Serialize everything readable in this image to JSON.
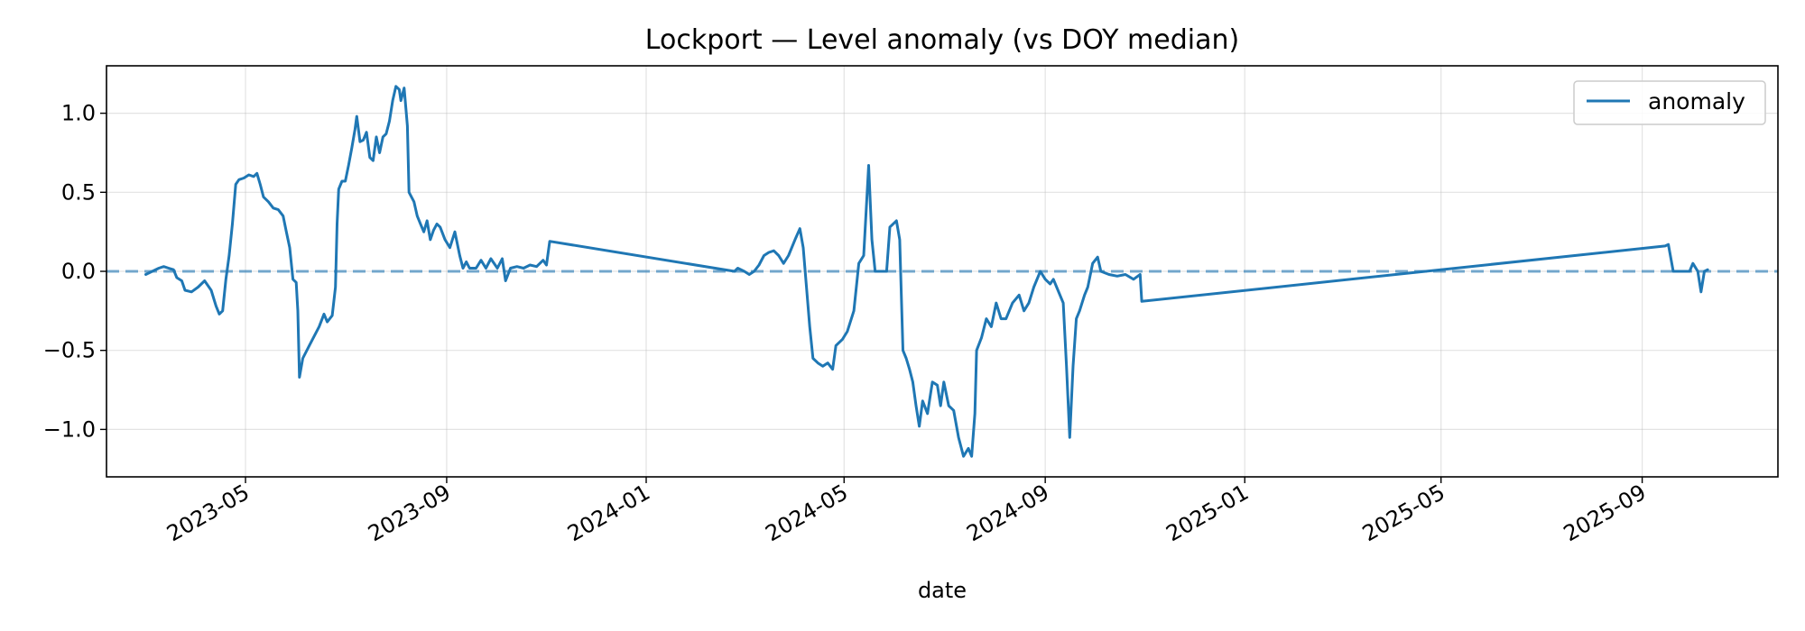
{
  "chart_data": {
    "type": "line",
    "title": "Lockport — Level anomaly (vs DOY median)",
    "xlabel": "date",
    "ylabel": "",
    "xlim": [
      "2023-02-05",
      "2025-11-23"
    ],
    "ylim": [
      -1.3,
      1.3
    ],
    "x_ticks": [
      "2023-05",
      "2023-09",
      "2024-01",
      "2024-05",
      "2024-09",
      "2025-01",
      "2025-05",
      "2025-09"
    ],
    "y_ticks": [
      -1.0,
      -0.5,
      0.0,
      0.5,
      1.0
    ],
    "y_tick_labels": [
      "−1.0",
      "−0.5",
      "0.0",
      "0.5",
      "1.0"
    ],
    "grid": true,
    "legend_position": "top-right",
    "colors": {
      "series": "#1f77b4",
      "reference_line": "#1f77b4"
    },
    "reference_line": {
      "y": 0.0,
      "style": "dashed"
    },
    "series": [
      {
        "name": "anomaly",
        "points": [
          [
            "2023-03-01",
            -0.02
          ],
          [
            "2023-03-05",
            0.0
          ],
          [
            "2023-03-09",
            0.02
          ],
          [
            "2023-03-12",
            0.03
          ],
          [
            "2023-03-15",
            0.02
          ],
          [
            "2023-03-18",
            0.01
          ],
          [
            "2023-03-20",
            -0.04
          ],
          [
            "2023-03-23",
            -0.06
          ],
          [
            "2023-03-25",
            -0.12
          ],
          [
            "2023-03-29",
            -0.13
          ],
          [
            "2023-04-02",
            -0.1
          ],
          [
            "2023-04-06",
            -0.06
          ],
          [
            "2023-04-10",
            -0.12
          ],
          [
            "2023-04-13",
            -0.22
          ],
          [
            "2023-04-15",
            -0.27
          ],
          [
            "2023-04-17",
            -0.25
          ],
          [
            "2023-04-19",
            -0.05
          ],
          [
            "2023-04-21",
            0.1
          ],
          [
            "2023-04-23",
            0.3
          ],
          [
            "2023-04-25",
            0.55
          ],
          [
            "2023-04-27",
            0.58
          ],
          [
            "2023-04-30",
            0.59
          ],
          [
            "2023-05-03",
            0.61
          ],
          [
            "2023-05-06",
            0.6
          ],
          [
            "2023-05-08",
            0.62
          ],
          [
            "2023-05-10",
            0.55
          ],
          [
            "2023-05-12",
            0.47
          ],
          [
            "2023-05-15",
            0.44
          ],
          [
            "2023-05-18",
            0.4
          ],
          [
            "2023-05-21",
            0.39
          ],
          [
            "2023-05-24",
            0.35
          ],
          [
            "2023-05-26",
            0.25
          ],
          [
            "2023-05-28",
            0.15
          ],
          [
            "2023-05-30",
            -0.05
          ],
          [
            "2023-06-01",
            -0.07
          ],
          [
            "2023-06-02",
            -0.25
          ],
          [
            "2023-06-03",
            -0.67
          ],
          [
            "2023-06-05",
            -0.55
          ],
          [
            "2023-06-10",
            -0.45
          ],
          [
            "2023-06-15",
            -0.35
          ],
          [
            "2023-06-18",
            -0.27
          ],
          [
            "2023-06-20",
            -0.32
          ],
          [
            "2023-06-23",
            -0.28
          ],
          [
            "2023-06-25",
            -0.1
          ],
          [
            "2023-06-26",
            0.3
          ],
          [
            "2023-06-27",
            0.52
          ],
          [
            "2023-06-29",
            0.57
          ],
          [
            "2023-07-01",
            0.57
          ],
          [
            "2023-07-03",
            0.67
          ],
          [
            "2023-07-05",
            0.78
          ],
          [
            "2023-07-07",
            0.9
          ],
          [
            "2023-07-08",
            0.98
          ],
          [
            "2023-07-10",
            0.82
          ],
          [
            "2023-07-12",
            0.83
          ],
          [
            "2023-07-14",
            0.88
          ],
          [
            "2023-07-16",
            0.72
          ],
          [
            "2023-07-18",
            0.7
          ],
          [
            "2023-07-20",
            0.85
          ],
          [
            "2023-07-22",
            0.75
          ],
          [
            "2023-07-24",
            0.85
          ],
          [
            "2023-07-26",
            0.87
          ],
          [
            "2023-07-28",
            0.95
          ],
          [
            "2023-07-30",
            1.08
          ],
          [
            "2023-08-01",
            1.17
          ],
          [
            "2023-08-03",
            1.15
          ],
          [
            "2023-08-04",
            1.08
          ],
          [
            "2023-08-06",
            1.16
          ],
          [
            "2023-08-08",
            0.92
          ],
          [
            "2023-08-09",
            0.5
          ],
          [
            "2023-08-12",
            0.44
          ],
          [
            "2023-08-14",
            0.35
          ],
          [
            "2023-08-16",
            0.3
          ],
          [
            "2023-08-18",
            0.25
          ],
          [
            "2023-08-20",
            0.32
          ],
          [
            "2023-08-22",
            0.2
          ],
          [
            "2023-08-24",
            0.26
          ],
          [
            "2023-08-26",
            0.3
          ],
          [
            "2023-08-28",
            0.28
          ],
          [
            "2023-08-31",
            0.2
          ],
          [
            "2023-09-03",
            0.15
          ],
          [
            "2023-09-06",
            0.25
          ],
          [
            "2023-09-09",
            0.1
          ],
          [
            "2023-09-11",
            0.02
          ],
          [
            "2023-09-13",
            0.06
          ],
          [
            "2023-09-15",
            0.02
          ],
          [
            "2023-09-19",
            0.02
          ],
          [
            "2023-09-22",
            0.07
          ],
          [
            "2023-09-25",
            0.02
          ],
          [
            "2023-09-28",
            0.08
          ],
          [
            "2023-10-02",
            0.02
          ],
          [
            "2023-10-05",
            0.08
          ],
          [
            "2023-10-07",
            -0.06
          ],
          [
            "2023-10-10",
            0.02
          ],
          [
            "2023-10-14",
            0.03
          ],
          [
            "2023-10-18",
            0.02
          ],
          [
            "2023-10-22",
            0.04
          ],
          [
            "2023-10-26",
            0.03
          ],
          [
            "2023-10-30",
            0.07
          ],
          [
            "2023-11-01",
            0.04
          ],
          [
            "2023-11-03",
            0.19
          ],
          [
            "2024-02-24",
            0.0
          ],
          [
            "2024-02-26",
            0.02
          ],
          [
            "2024-03-01",
            0.0
          ],
          [
            "2024-03-04",
            -0.02
          ],
          [
            "2024-03-07",
            0.0
          ],
          [
            "2024-03-10",
            0.04
          ],
          [
            "2024-03-13",
            0.1
          ],
          [
            "2024-03-16",
            0.12
          ],
          [
            "2024-03-19",
            0.13
          ],
          [
            "2024-03-22",
            0.1
          ],
          [
            "2024-03-25",
            0.05
          ],
          [
            "2024-03-28",
            0.1
          ],
          [
            "2024-04-01",
            0.2
          ],
          [
            "2024-04-04",
            0.27
          ],
          [
            "2024-04-06",
            0.15
          ],
          [
            "2024-04-08",
            -0.1
          ],
          [
            "2024-04-10",
            -0.35
          ],
          [
            "2024-04-12",
            -0.55
          ],
          [
            "2024-04-15",
            -0.58
          ],
          [
            "2024-04-18",
            -0.6
          ],
          [
            "2024-04-21",
            -0.58
          ],
          [
            "2024-04-24",
            -0.62
          ],
          [
            "2024-04-26",
            -0.47
          ],
          [
            "2024-04-30",
            -0.43
          ],
          [
            "2024-05-03",
            -0.38
          ],
          [
            "2024-05-07",
            -0.25
          ],
          [
            "2024-05-10",
            0.05
          ],
          [
            "2024-05-13",
            0.1
          ],
          [
            "2024-05-16",
            0.67
          ],
          [
            "2024-05-18",
            0.2
          ],
          [
            "2024-05-20",
            0.0
          ],
          [
            "2024-05-27",
            0.0
          ],
          [
            "2024-05-29",
            0.28
          ],
          [
            "2024-06-02",
            0.32
          ],
          [
            "2024-06-04",
            0.2
          ],
          [
            "2024-06-06",
            -0.5
          ],
          [
            "2024-06-08",
            -0.55
          ],
          [
            "2024-06-10",
            -0.62
          ],
          [
            "2024-06-12",
            -0.7
          ],
          [
            "2024-06-14",
            -0.85
          ],
          [
            "2024-06-16",
            -0.98
          ],
          [
            "2024-06-18",
            -0.82
          ],
          [
            "2024-06-21",
            -0.9
          ],
          [
            "2024-06-24",
            -0.7
          ],
          [
            "2024-06-27",
            -0.72
          ],
          [
            "2024-06-29",
            -0.85
          ],
          [
            "2024-07-01",
            -0.7
          ],
          [
            "2024-07-04",
            -0.85
          ],
          [
            "2024-07-07",
            -0.88
          ],
          [
            "2024-07-10",
            -1.05
          ],
          [
            "2024-07-13",
            -1.17
          ],
          [
            "2024-07-16",
            -1.12
          ],
          [
            "2024-07-18",
            -1.17
          ],
          [
            "2024-07-20",
            -0.9
          ],
          [
            "2024-07-21",
            -0.5
          ],
          [
            "2024-07-24",
            -0.42
          ],
          [
            "2024-07-27",
            -0.3
          ],
          [
            "2024-07-30",
            -0.35
          ],
          [
            "2024-08-02",
            -0.2
          ],
          [
            "2024-08-05",
            -0.3
          ],
          [
            "2024-08-08",
            -0.3
          ],
          [
            "2024-08-12",
            -0.2
          ],
          [
            "2024-08-16",
            -0.15
          ],
          [
            "2024-08-19",
            -0.25
          ],
          [
            "2024-08-22",
            -0.2
          ],
          [
            "2024-08-25",
            -0.1
          ],
          [
            "2024-08-29",
            0.0
          ],
          [
            "2024-09-01",
            -0.05
          ],
          [
            "2024-09-04",
            -0.08
          ],
          [
            "2024-09-06",
            -0.05
          ],
          [
            "2024-09-08",
            -0.1
          ],
          [
            "2024-09-12",
            -0.2
          ],
          [
            "2024-09-14",
            -0.6
          ],
          [
            "2024-09-16",
            -1.05
          ],
          [
            "2024-09-18",
            -0.6
          ],
          [
            "2024-09-20",
            -0.3
          ],
          [
            "2024-09-22",
            -0.25
          ],
          [
            "2024-09-25",
            -0.15
          ],
          [
            "2024-09-27",
            -0.1
          ],
          [
            "2024-09-30",
            0.05
          ],
          [
            "2024-10-03",
            0.09
          ],
          [
            "2024-10-05",
            0.0
          ],
          [
            "2024-10-10",
            -0.02
          ],
          [
            "2024-10-15",
            -0.03
          ],
          [
            "2024-10-20",
            -0.02
          ],
          [
            "2024-10-25",
            -0.05
          ],
          [
            "2024-10-29",
            -0.02
          ],
          [
            "2024-10-30",
            -0.19
          ],
          [
            "2025-09-15",
            0.16
          ],
          [
            "2025-09-17",
            0.17
          ],
          [
            "2025-09-20",
            0.0
          ],
          [
            "2025-09-30",
            0.0
          ],
          [
            "2025-10-02",
            0.05
          ],
          [
            "2025-10-05",
            0.0
          ],
          [
            "2025-10-07",
            -0.13
          ],
          [
            "2025-10-09",
            0.0
          ],
          [
            "2025-10-11",
            0.01
          ]
        ]
      }
    ]
  }
}
